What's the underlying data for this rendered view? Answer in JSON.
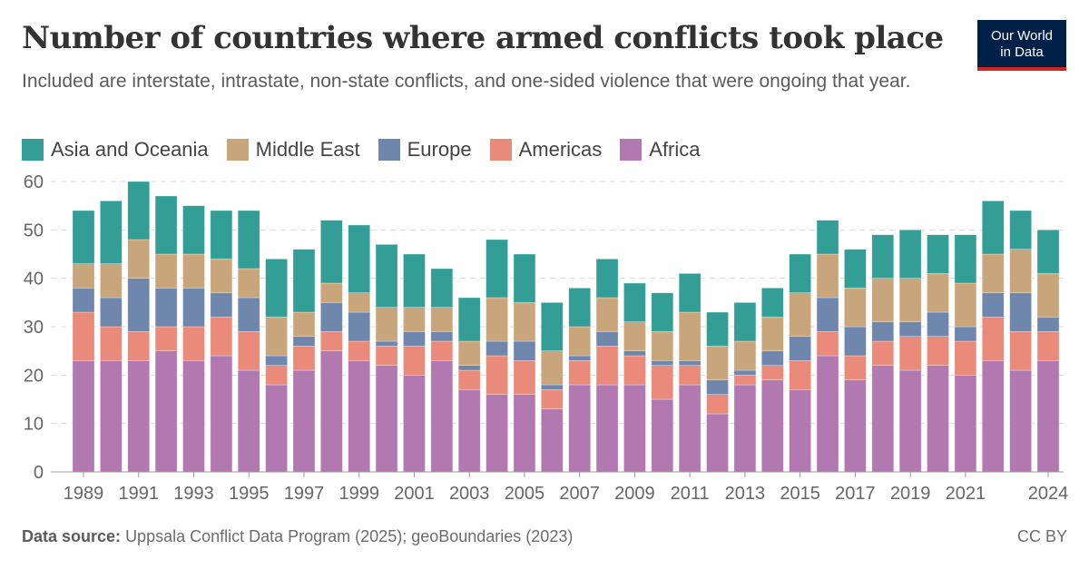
{
  "header": {
    "title": "Number of countries where armed conflicts took place",
    "subtitle": "Included are interstate, intrastate, non-state conflicts, and one-sided violence that were ongoing that year.",
    "logo_line1": "Our World",
    "logo_line2": "in Data"
  },
  "footer": {
    "source_label": "Data source:",
    "source_text": "Uppsala Conflict Data Program (2025); geoBoundaries (2023)",
    "license": "CC BY"
  },
  "chart_data": {
    "type": "bar",
    "stacked": true,
    "title": "Number of countries where armed conflicts took place",
    "ylim": [
      0,
      60
    ],
    "yticks": [
      0,
      10,
      20,
      30,
      40,
      50,
      60
    ],
    "grid": "horizontal dashed",
    "legend": "top",
    "xtick_labels": [
      "1989",
      "1991",
      "1993",
      "1995",
      "1997",
      "1999",
      "2001",
      "2003",
      "2005",
      "2007",
      "2009",
      "2011",
      "2013",
      "2015",
      "2017",
      "2019",
      "2021",
      "2024"
    ],
    "categories": [
      1989,
      1990,
      1991,
      1992,
      1993,
      1994,
      1995,
      1996,
      1997,
      1998,
      1999,
      2000,
      2001,
      2002,
      2003,
      2004,
      2005,
      2006,
      2007,
      2008,
      2009,
      2010,
      2011,
      2012,
      2013,
      2014,
      2015,
      2016,
      2017,
      2018,
      2019,
      2020,
      2021,
      2022,
      2023,
      2024
    ],
    "series": [
      {
        "name": "Africa",
        "color": "#b278b0",
        "values": [
          23,
          23,
          23,
          25,
          23,
          24,
          21,
          18,
          21,
          25,
          23,
          22,
          20,
          23,
          17,
          16,
          16,
          13,
          18,
          18,
          18,
          15,
          18,
          12,
          18,
          19,
          17,
          24,
          19,
          22,
          21,
          22,
          20,
          23,
          21,
          23
        ]
      },
      {
        "name": "Americas",
        "color": "#ea8a7a",
        "values": [
          10,
          7,
          6,
          5,
          7,
          8,
          8,
          4,
          5,
          4,
          4,
          4,
          6,
          4,
          4,
          8,
          7,
          4,
          5,
          8,
          6,
          7,
          4,
          4,
          2,
          3,
          6,
          5,
          5,
          5,
          7,
          6,
          7,
          9,
          8,
          6
        ]
      },
      {
        "name": "Europe",
        "color": "#6f86ad",
        "values": [
          5,
          6,
          11,
          8,
          8,
          5,
          7,
          2,
          2,
          6,
          6,
          1,
          3,
          2,
          1,
          3,
          4,
          1,
          1,
          3,
          1,
          1,
          1,
          3,
          1,
          3,
          5,
          7,
          6,
          4,
          3,
          5,
          3,
          5,
          8,
          3
        ]
      },
      {
        "name": "Middle East",
        "color": "#c8a57a",
        "values": [
          5,
          7,
          8,
          7,
          7,
          7,
          6,
          8,
          5,
          4,
          4,
          7,
          5,
          5,
          5,
          9,
          8,
          7,
          6,
          7,
          6,
          6,
          10,
          7,
          6,
          7,
          9,
          9,
          8,
          9,
          9,
          8,
          9,
          8,
          9,
          9
        ]
      },
      {
        "name": "Asia and Oceania",
        "color": "#339e96",
        "values": [
          11,
          13,
          12,
          12,
          10,
          10,
          12,
          12,
          13,
          13,
          14,
          13,
          11,
          8,
          9,
          12,
          10,
          10,
          8,
          8,
          8,
          8,
          8,
          7,
          8,
          6,
          8,
          7,
          8,
          9,
          10,
          8,
          10,
          11,
          8,
          9
        ]
      }
    ],
    "legend_order": [
      "Asia and Oceania",
      "Middle East",
      "Europe",
      "Americas",
      "Africa"
    ]
  }
}
